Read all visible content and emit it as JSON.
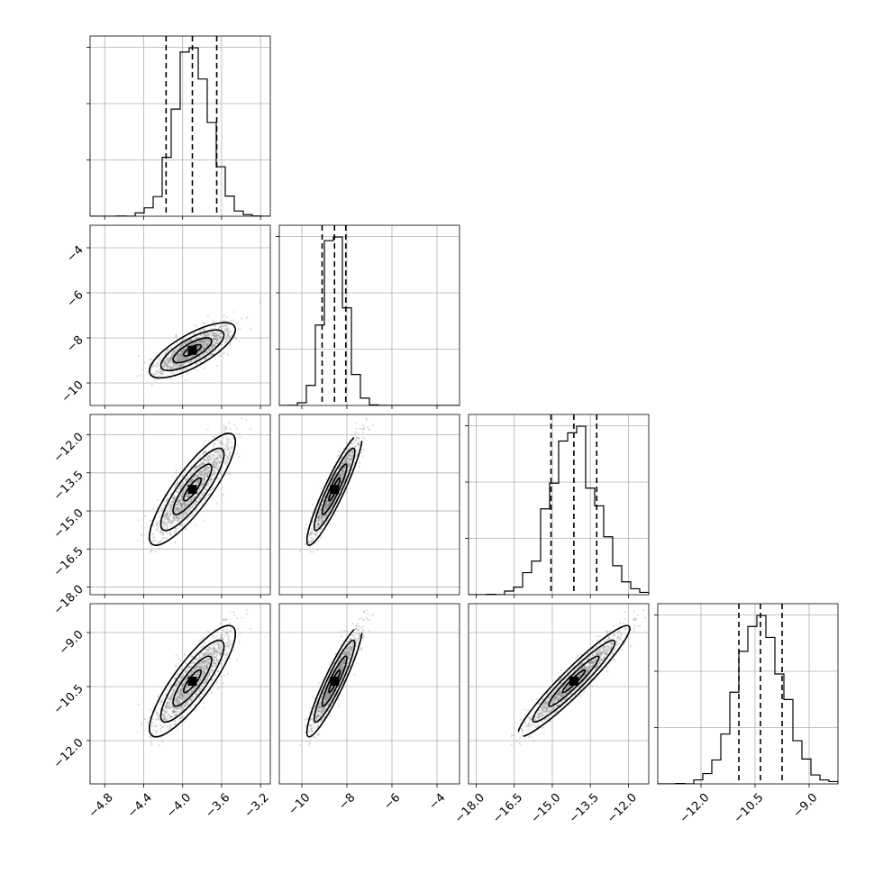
{
  "chart_data": {
    "type": "corner",
    "title": "",
    "grid": true,
    "params": [
      {
        "range": [
          -4.95,
          -3.1
        ],
        "ticks": [
          -4.8,
          -4.4,
          -4.0,
          -3.6,
          -3.2
        ],
        "tick_labels": [
          "−4.8",
          "−4.4",
          "−4.0",
          "−3.6",
          "−3.2"
        ],
        "mean": -3.9,
        "sd": 0.18,
        "quantiles": [
          -4.17,
          -3.9,
          -3.65
        ]
      },
      {
        "range": [
          -11.0,
          -3.0
        ],
        "ticks": [
          -10,
          -8,
          -6,
          -4
        ],
        "tick_labels": [
          "−10",
          "−8",
          "−6",
          "−4"
        ],
        "mean": -8.55,
        "sd": 0.5,
        "quantiles": [
          -9.1,
          -8.55,
          -8.05
        ]
      },
      {
        "range": [
          -18.3,
          -11.2
        ],
        "ticks": [
          -18.0,
          -16.5,
          -15.0,
          -13.5,
          -12.0
        ],
        "tick_labels": [
          "−18.0",
          "−16.5",
          "−15.0",
          "−13.5",
          "−12.0"
        ],
        "mean": -14.15,
        "sd": 0.9,
        "quantiles": [
          -15.05,
          -14.15,
          -13.25
        ]
      },
      {
        "range": [
          -13.2,
          -8.2
        ],
        "ticks": [
          -12.0,
          -10.5,
          -9.0
        ],
        "tick_labels": [
          "−12.0",
          "−10.5",
          "−9.0"
        ],
        "mean": -10.35,
        "sd": 0.63,
        "quantiles": [
          -10.95,
          -10.35,
          -9.75
        ]
      }
    ],
    "correlations": [
      [
        1.0,
        0.75,
        0.85,
        0.85
      ],
      [
        0.75,
        1.0,
        0.92,
        0.92
      ],
      [
        0.85,
        0.92,
        1.0,
        0.95
      ],
      [
        0.85,
        0.92,
        0.95,
        1.0
      ]
    ],
    "diagonal": "histogram",
    "off_diagonal": "2d density contours with scatter samples",
    "colors": {
      "ink": "#000000",
      "grid": "#b0b0b0",
      "scatter": "#888888"
    }
  }
}
